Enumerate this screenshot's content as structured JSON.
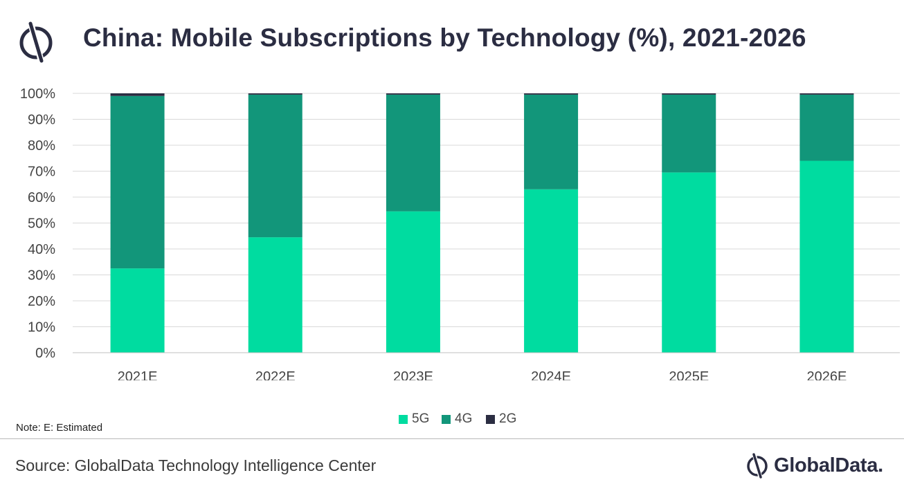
{
  "title": "China: Mobile Subscriptions by Technology (%), 2021-2026",
  "note": "Note: E: Estimated",
  "source": "Source: GlobalData Technology Intelligence Center",
  "brand": {
    "name": "GlobalData.",
    "logo_icon": "globaldata-logo-icon"
  },
  "colors": {
    "5G": "#00dca0",
    "4G": "#12967a",
    "2G": "#2b2d42",
    "grid": "#d9d9d9",
    "axis": "#bfbfbf"
  },
  "chart_data": {
    "type": "bar",
    "stacked": true,
    "categories": [
      "2021E",
      "2022E",
      "2023E",
      "2024E",
      "2025E",
      "2026E"
    ],
    "series": [
      {
        "name": "5G",
        "color": "#00dca0",
        "values": [
          32.5,
          44.5,
          54.5,
          63,
          69.5,
          74
        ]
      },
      {
        "name": "4G",
        "color": "#12967a",
        "values": [
          66.5,
          55,
          45,
          36.5,
          30,
          25.5
        ]
      },
      {
        "name": "2G",
        "color": "#2b2d42",
        "values": [
          1,
          0.5,
          0.5,
          0.5,
          0.5,
          0.5
        ]
      }
    ],
    "ylim": [
      0,
      100
    ],
    "yticks": [
      "0%",
      "10%",
      "20%",
      "30%",
      "40%",
      "50%",
      "60%",
      "70%",
      "80%",
      "90%",
      "100%"
    ],
    "grid": true,
    "legend": "bottom-center"
  }
}
